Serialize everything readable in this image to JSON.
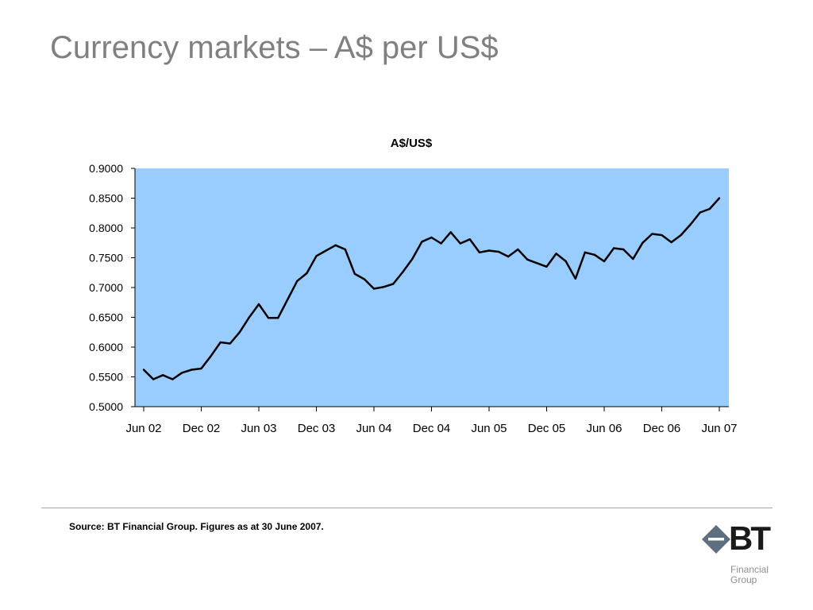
{
  "slide": {
    "title": "Currency markets – A$ per US$",
    "source": "Source: BT Financial Group. Figures as at 30 June 2007."
  },
  "logo": {
    "mark": "BT",
    "line1": "Financial",
    "line2": "Group",
    "icon": "diamond-icon",
    "colors": {
      "diamond": "#5e7080",
      "text": "#1a1a1a",
      "subtext": "#8a8f96"
    }
  },
  "chart_data": {
    "type": "line",
    "title": "A$/US$",
    "xlabel": "",
    "ylabel": "",
    "ylim": [
      0.5,
      0.9
    ],
    "yticks": [
      "0.9000",
      "0.8500",
      "0.8000",
      "0.7500",
      "0.7000",
      "0.6500",
      "0.6000",
      "0.5500",
      "0.5000"
    ],
    "xticks": [
      "Jun 02",
      "Dec 02",
      "Jun 03",
      "Dec 03",
      "Jun 04",
      "Dec 04",
      "Jun 05",
      "Dec 05",
      "Jun 06",
      "Dec 06",
      "Jun 07"
    ],
    "plot_background": "#99ccff",
    "line_color": "#000000",
    "grid": false,
    "legend": "none",
    "series": [
      {
        "x": [
          "Jun 02",
          "Jul 02",
          "Aug 02",
          "Sep 02",
          "Oct 02",
          "Nov 02",
          "Dec 02",
          "Jan 03",
          "Feb 03",
          "Mar 03",
          "Apr 03",
          "May 03",
          "Jun 03",
          "Jul 03",
          "Aug 03",
          "Sep 03",
          "Oct 03",
          "Nov 03",
          "Dec 03",
          "Jan 04",
          "Feb 04",
          "Mar 04",
          "Apr 04",
          "May 04",
          "Jun 04",
          "Jul 04",
          "Aug 04",
          "Sep 04",
          "Oct 04",
          "Nov 04",
          "Dec 04",
          "Jan 05",
          "Feb 05",
          "Mar 05",
          "Apr 05",
          "May 05",
          "Jun 05",
          "Jul 05",
          "Aug 05",
          "Sep 05",
          "Oct 05",
          "Nov 05",
          "Dec 05",
          "Jan 06",
          "Feb 06",
          "Mar 06",
          "Apr 06",
          "May 06",
          "Jun 06",
          "Jul 06",
          "Aug 06",
          "Sep 06",
          "Oct 06",
          "Nov 06",
          "Dec 06",
          "Jan 07",
          "Feb 07",
          "Mar 07",
          "Apr 07",
          "May 07",
          "Jun 07"
        ],
        "values": [
          0.562,
          0.546,
          0.553,
          0.546,
          0.557,
          0.562,
          0.564,
          0.585,
          0.608,
          0.606,
          0.625,
          0.65,
          0.672,
          0.649,
          0.649,
          0.68,
          0.711,
          0.724,
          0.753,
          0.762,
          0.771,
          0.764,
          0.723,
          0.714,
          0.698,
          0.701,
          0.706,
          0.726,
          0.748,
          0.777,
          0.784,
          0.774,
          0.793,
          0.774,
          0.781,
          0.759,
          0.762,
          0.76,
          0.752,
          0.764,
          0.747,
          0.741,
          0.735,
          0.757,
          0.744,
          0.715,
          0.759,
          0.755,
          0.744,
          0.766,
          0.764,
          0.748,
          0.775,
          0.79,
          0.788,
          0.776,
          0.788,
          0.806,
          0.826,
          0.832,
          0.85
        ]
      }
    ]
  }
}
